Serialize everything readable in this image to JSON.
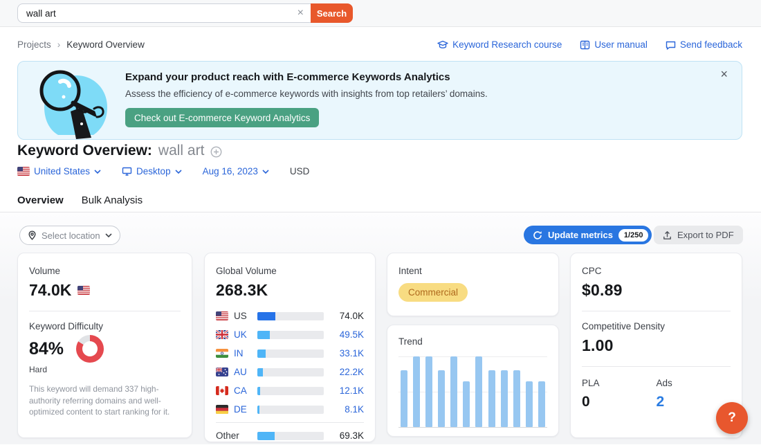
{
  "header": {
    "search_value": "wall art",
    "search_button": "Search"
  },
  "breadcrumb": {
    "items": [
      "Projects",
      "Keyword Overview"
    ]
  },
  "nav_links": [
    {
      "label": "Keyword Research course",
      "icon": "graduation-cap-icon"
    },
    {
      "label": "User manual",
      "icon": "book-icon"
    },
    {
      "label": "Send feedback",
      "icon": "chat-bubble-icon"
    }
  ],
  "banner": {
    "title": "Expand your product reach with E-commerce Keywords Analytics",
    "subtitle": "Assess the efficiency of e-commerce keywords with insights from top retailers’ domains.",
    "cta": "Check out E-commerce Keyword Analytics"
  },
  "page": {
    "title": "Keyword Overview:",
    "keyword": "wall art"
  },
  "filters": {
    "country": "United States",
    "device": "Desktop",
    "date": "Aug 16, 2023",
    "currency": "USD"
  },
  "tabs": [
    {
      "label": "Overview",
      "active": true
    },
    {
      "label": "Bulk Analysis",
      "active": false
    }
  ],
  "toolbar": {
    "select_location": "Select location",
    "update_metrics": "Update metrics",
    "update_count": "1/250",
    "export_pdf": "Export to PDF"
  },
  "cards": {
    "volume": {
      "label": "Volume",
      "value": "74.0K",
      "flag": "US"
    },
    "difficulty": {
      "label": "Keyword Difficulty",
      "percent": "84%",
      "percent_value": 84,
      "level": "Hard",
      "description": "This keyword will demand 337 high-authority referring domains and well-optimized content to start ranking for it."
    },
    "global_volume": {
      "label": "Global Volume",
      "value": "268.3K",
      "total": 268.3,
      "rows": [
        {
          "code": "US",
          "value": "74.0K",
          "num": 74.0,
          "highlight": true,
          "link": false
        },
        {
          "code": "UK",
          "value": "49.5K",
          "num": 49.5,
          "highlight": false,
          "link": true
        },
        {
          "code": "IN",
          "value": "33.1K",
          "num": 33.1,
          "highlight": false,
          "link": true
        },
        {
          "code": "AU",
          "value": "22.2K",
          "num": 22.2,
          "highlight": false,
          "link": true
        },
        {
          "code": "CA",
          "value": "12.1K",
          "num": 12.1,
          "highlight": false,
          "link": true
        },
        {
          "code": "DE",
          "value": "8.1K",
          "num": 8.1,
          "highlight": false,
          "link": true
        },
        {
          "code": "Other",
          "value": "69.3K",
          "num": 69.3,
          "highlight": false,
          "link": false
        }
      ]
    },
    "intent": {
      "label": "Intent",
      "badge": "Commercial"
    },
    "trend": {
      "label": "Trend",
      "type": "bar",
      "values": [
        0.8,
        1,
        1,
        0.8,
        1,
        0.65,
        1,
        0.8,
        0.8,
        0.8,
        0.65,
        0.65
      ]
    },
    "cpc": {
      "label": "CPC",
      "value": "$0.89"
    },
    "competitive_density": {
      "label": "Competitive Density",
      "value": "1.00"
    },
    "pla": {
      "label": "PLA",
      "value": "0"
    },
    "ads": {
      "label": "Ads",
      "value": "2"
    }
  },
  "help_button": "?",
  "colors": {
    "accent_orange": "#E8582B",
    "help_orange": "#E8572E",
    "link_blue": "#2a65d9",
    "update_blue": "#2976E1",
    "tab_blue": "#2E7BE5",
    "green_cta": "#4AA182",
    "intent_bg": "#F8DC82",
    "intent_text": "#AF691D",
    "kd_red": "#E5494F",
    "us_bar": "#2673E8",
    "country_bar": "#4FB5F7",
    "trend_bar": "#97C7F1"
  }
}
